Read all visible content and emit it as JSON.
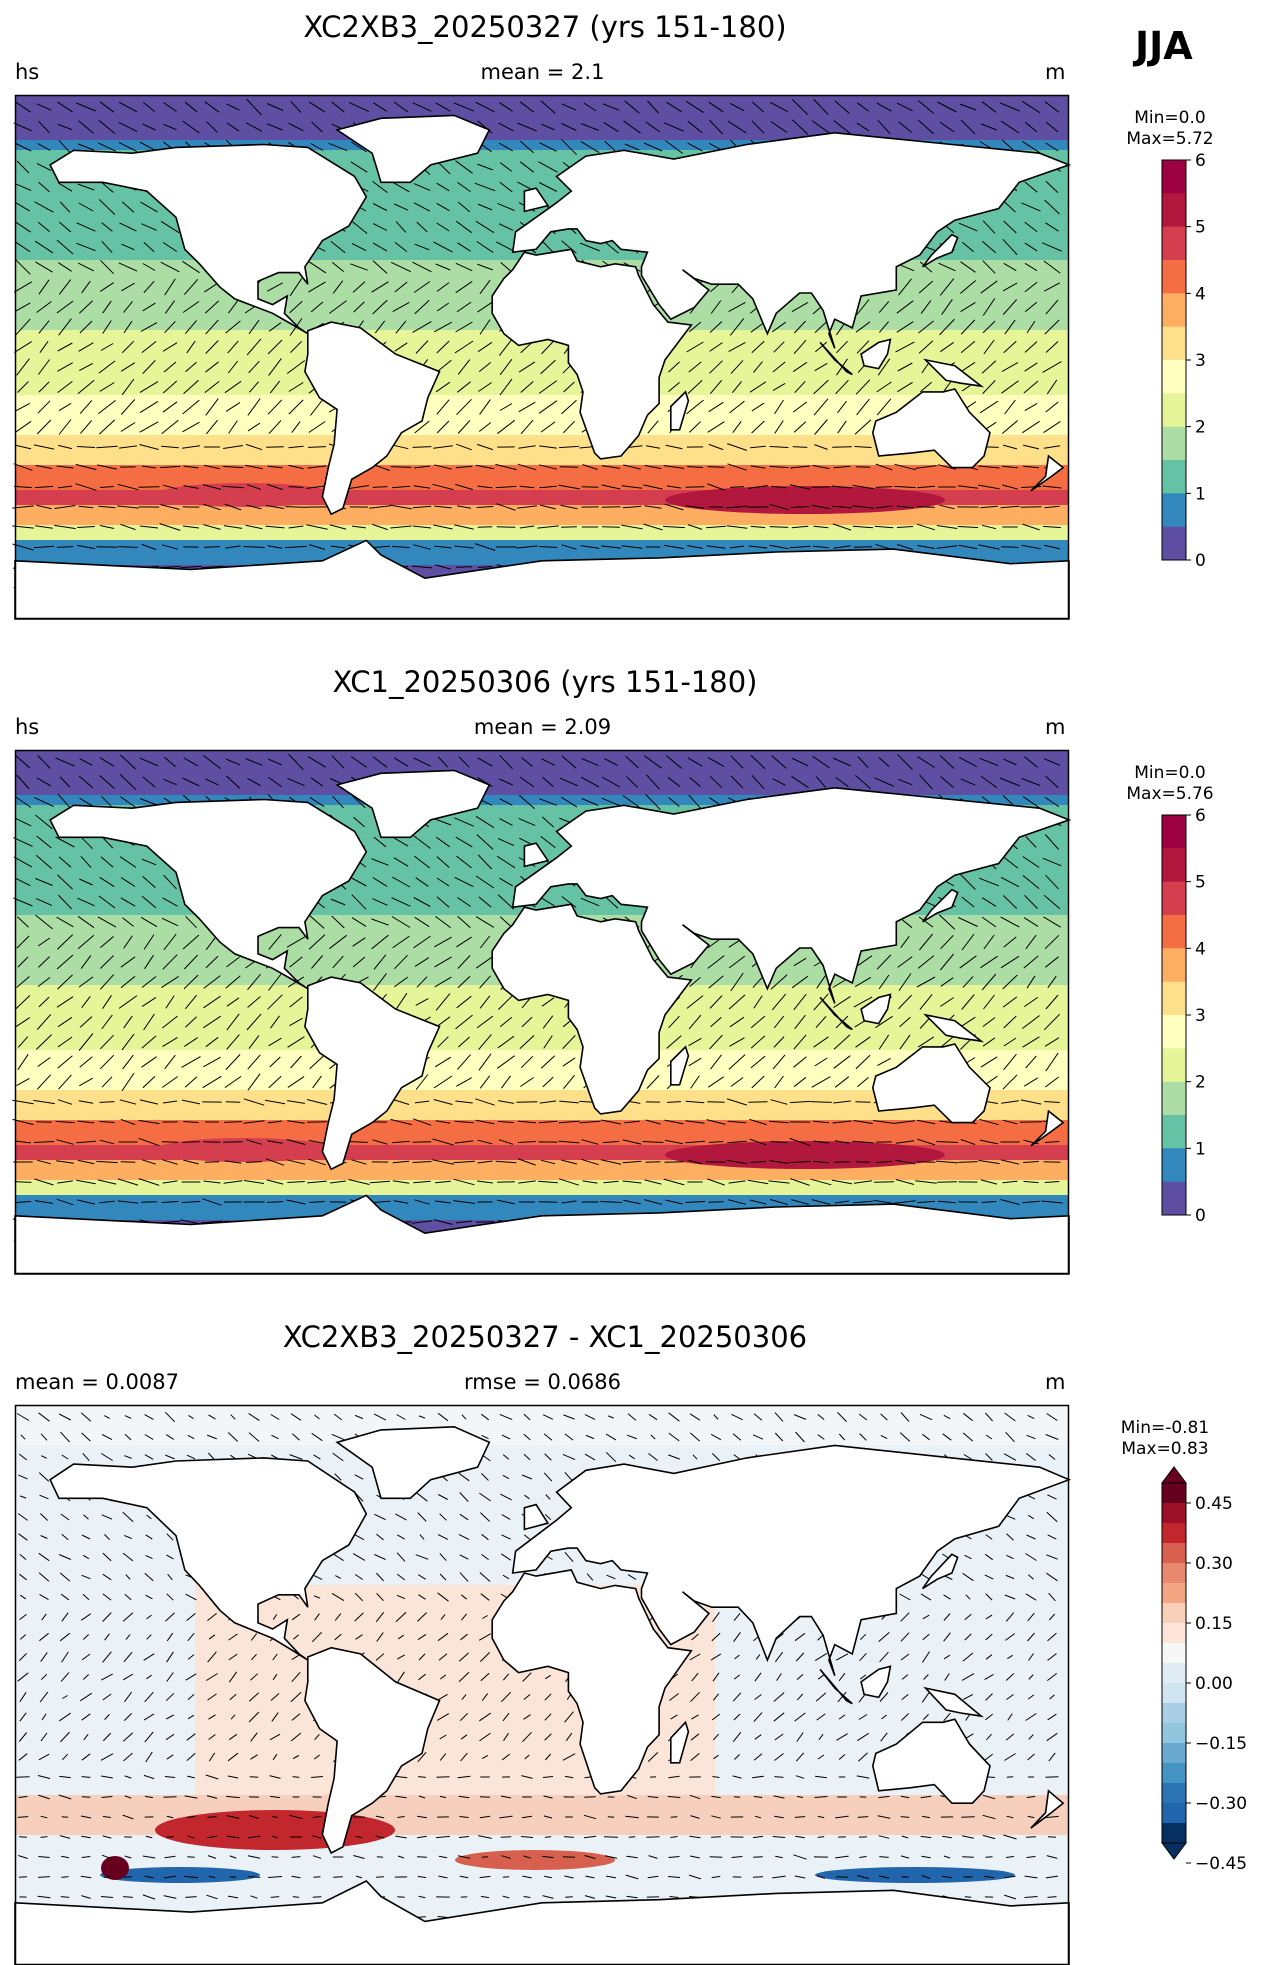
{
  "season": "JJA",
  "panels": [
    {
      "title": "XC2XB3_20250327 (yrs 151-180)",
      "left_label": "hs",
      "center_label": "mean = 2.1",
      "right_label": "m",
      "colorbar": {
        "min_label": "Min=0.0",
        "max_label": "Max=5.72",
        "ticks": [
          "0",
          "1",
          "2",
          "3",
          "4",
          "5",
          "6"
        ],
        "colors": [
          "#5e4fa2",
          "#3288bd",
          "#66c2a5",
          "#abdda4",
          "#e6f598",
          "#ffffbf",
          "#fee08b",
          "#fdae61",
          "#f46d43",
          "#d53e4f",
          "#b2183e",
          "#9e0142"
        ]
      }
    },
    {
      "title": "XC1_20250306 (yrs 151-180)",
      "left_label": "hs",
      "center_label": "mean = 2.09",
      "right_label": "m",
      "colorbar": {
        "min_label": "Min=0.0",
        "max_label": "Max=5.76",
        "ticks": [
          "0",
          "1",
          "2",
          "3",
          "4",
          "5",
          "6"
        ],
        "colors": [
          "#5e4fa2",
          "#3288bd",
          "#66c2a5",
          "#abdda4",
          "#e6f598",
          "#ffffbf",
          "#fee08b",
          "#fdae61",
          "#f46d43",
          "#d53e4f",
          "#b2183e",
          "#9e0142"
        ]
      }
    },
    {
      "title": "XC2XB3_20250327 - XC1_20250306",
      "left_label": "mean = 0.0087",
      "center_label": "rmse = 0.0686",
      "right_label": "m",
      "colorbar": {
        "min_label": "Min=-0.81",
        "max_label": "Max=0.83",
        "ticks": [
          "0.45",
          "0.30",
          "0.15",
          "0.00",
          "−0.15",
          "−0.30",
          "−0.45"
        ],
        "colors": [
          "#67001f",
          "#9c1127",
          "#c1272d",
          "#d6604d",
          "#e8896f",
          "#f4a582",
          "#fbd0b9",
          "#fde6d9",
          "#f7f7f7",
          "#e0ecf4",
          "#d1e5f0",
          "#a8cfe5",
          "#92c5de",
          "#6aaad0",
          "#4393c3",
          "#2c73b3",
          "#2166ac",
          "#053061"
        ]
      }
    }
  ],
  "colors": {
    "land": "#ffffff",
    "coast": "#000000",
    "seq_low": "#5e4fa2",
    "seq_high": "#9e0142",
    "div_neg": "#053061",
    "div_pos": "#67001f",
    "div_zero": "#f7f7f7"
  }
}
